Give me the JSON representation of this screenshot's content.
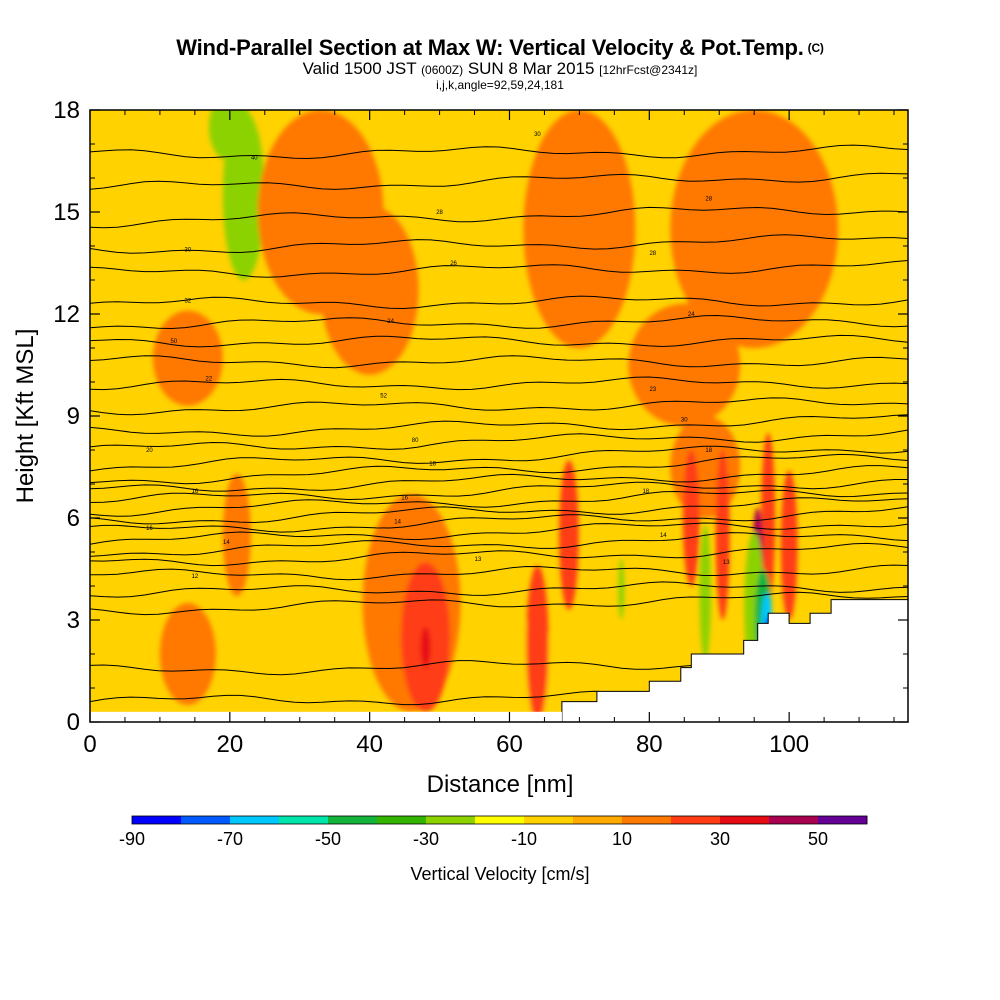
{
  "header": {
    "title": "Wind-Parallel Section at Max W: Vertical Velocity & Pot.Temp.",
    "copyright": "(C)",
    "valid_prefix": "Valid 1500 JST ",
    "valid_utc": "(0600Z)",
    "valid_date": " SUN 8 Mar 2015 ",
    "forecast": "[12hrFcst@2341z]",
    "section_params": "i,j,k,angle=92,59,24,181"
  },
  "colors": {
    "bins": [
      "#0000ff",
      "#005aff",
      "#00c8ff",
      "#00e6aa",
      "#14b43c",
      "#32b400",
      "#8cd200",
      "#ffff00",
      "#ffd200",
      "#ffaa00",
      "#ff7800",
      "#ff3c14",
      "#e60a14",
      "#aa0050",
      "#640096"
    ],
    "background_field": "#ffd200",
    "terrain": "#ffffff",
    "contour": "#000000"
  },
  "chart_data": {
    "type": "heatmap",
    "x": {
      "label": "Distance [nm]",
      "range": [
        0,
        117
      ],
      "ticks": [
        0,
        20,
        40,
        60,
        80,
        100
      ]
    },
    "y": {
      "label": "Height [Kft MSL]",
      "range": [
        0,
        18
      ],
      "ticks": [
        0,
        3,
        6,
        9,
        12,
        15,
        18
      ]
    },
    "colorbar": {
      "label": "Vertical Velocity [cm/s]",
      "bins": [
        -90,
        -80,
        -70,
        -60,
        -50,
        -40,
        -30,
        -20,
        -10,
        0,
        10,
        20,
        30,
        40,
        50,
        60
      ],
      "tick_labels": [
        "-90",
        "-70",
        "-50",
        "-30",
        "-10",
        "10",
        "30",
        "50"
      ]
    },
    "vertical_velocity_features": [
      {
        "x": 3,
        "y": 9,
        "rx": 3,
        "ry": 8,
        "w": -10
      },
      {
        "x": 7,
        "y": 14,
        "rx": 4,
        "ry": 3,
        "w": -10
      },
      {
        "x": 22,
        "y": 15.5,
        "rx": 3,
        "ry": 2.5,
        "w": -30
      },
      {
        "x": 20,
        "y": 17.5,
        "rx": 3,
        "ry": 1,
        "w": -30
      },
      {
        "x": 7,
        "y": 17.5,
        "rx": 3,
        "ry": 1,
        "w": -10
      },
      {
        "x": 40,
        "y": 11.8,
        "rx": 5,
        "ry": 1.8,
        "w": -10
      },
      {
        "x": 54,
        "y": 9.3,
        "rx": 4,
        "ry": 0.6,
        "w": -10
      },
      {
        "x": 63,
        "y": 1.5,
        "rx": 4,
        "ry": 1.5,
        "w": -10
      },
      {
        "x": 78,
        "y": 3.0,
        "rx": 6,
        "ry": 1.8,
        "w": -10
      },
      {
        "x": 40,
        "y": 12.7,
        "rx": 7,
        "ry": 2.5,
        "w": 10
      },
      {
        "x": 46,
        "y": 3.5,
        "rx": 7,
        "ry": 3.2,
        "w": 10
      },
      {
        "x": 33,
        "y": 15,
        "rx": 9,
        "ry": 3,
        "w": 10
      },
      {
        "x": 70,
        "y": 14.5,
        "rx": 8,
        "ry": 3.5,
        "w": 10
      },
      {
        "x": 95,
        "y": 14.5,
        "rx": 12,
        "ry": 3.5,
        "w": 10
      },
      {
        "x": 85,
        "y": 10.5,
        "rx": 8,
        "ry": 1.8,
        "w": 10
      },
      {
        "x": 14,
        "y": 10.7,
        "rx": 5,
        "ry": 1.4,
        "w": 10
      },
      {
        "x": 14,
        "y": 2.0,
        "rx": 4,
        "ry": 1.5,
        "w": 10
      },
      {
        "x": 21,
        "y": 5.5,
        "rx": 2,
        "ry": 1.8,
        "w": 10
      },
      {
        "x": 88,
        "y": 7.5,
        "rx": 5,
        "ry": 1.5,
        "w": 10
      },
      {
        "x": 48,
        "y": 2.5,
        "rx": 3.5,
        "ry": 2.2,
        "w": 20
      },
      {
        "x": 48,
        "y": 2.2,
        "rx": 0.7,
        "ry": 0.6,
        "w": 30
      },
      {
        "x": 64,
        "y": 2.3,
        "rx": 1.6,
        "ry": 2.3,
        "w": 20
      },
      {
        "x": 68.5,
        "y": 5.5,
        "rx": 1.4,
        "ry": 2.2,
        "w": 20
      },
      {
        "x": 86,
        "y": 6.0,
        "rx": 1.2,
        "ry": 2.0,
        "w": 20
      },
      {
        "x": 90.5,
        "y": 5.5,
        "rx": 1.0,
        "ry": 2.5,
        "w": 20
      },
      {
        "x": 97,
        "y": 6.0,
        "rx": 1.0,
        "ry": 2.5,
        "w": 20
      },
      {
        "x": 100,
        "y": 5.2,
        "rx": 1.2,
        "ry": 2.2,
        "w": 20
      },
      {
        "x": 95.5,
        "y": 4.8,
        "rx": 0.8,
        "ry": 1.5,
        "w": 40
      },
      {
        "x": 88,
        "y": 3.8,
        "rx": 0.8,
        "ry": 2.0,
        "w": -30
      },
      {
        "x": 95,
        "y": 3.4,
        "rx": 1.4,
        "ry": 2.2,
        "w": -30
      },
      {
        "x": 76,
        "y": 3.9,
        "rx": 0.5,
        "ry": 0.9,
        "w": -30
      },
      {
        "x": 96.3,
        "y": 3.1,
        "rx": 1.2,
        "ry": 1.4,
        "w": -50
      },
      {
        "x": 96.8,
        "y": 2.8,
        "rx": 0.8,
        "ry": 1.0,
        "w": -70
      },
      {
        "x": 97,
        "y": 2.4,
        "rx": 0.5,
        "ry": 0.7,
        "w": -90
      }
    ],
    "terrain_profile": [
      [
        67.5,
        0
      ],
      [
        67.5,
        0.6
      ],
      [
        72.5,
        0.6
      ],
      [
        72.5,
        0.9
      ],
      [
        80,
        0.9
      ],
      [
        80,
        1.2
      ],
      [
        84.5,
        1.2
      ],
      [
        84.5,
        1.6
      ],
      [
        86,
        1.6
      ],
      [
        86,
        2.0
      ],
      [
        93.5,
        2.0
      ],
      [
        93.5,
        2.4
      ],
      [
        95.5,
        2.4
      ],
      [
        95.5,
        2.9
      ],
      [
        97,
        2.9
      ],
      [
        97,
        3.2
      ],
      [
        100,
        3.2
      ],
      [
        100,
        2.9
      ],
      [
        103,
        2.9
      ],
      [
        103,
        3.2
      ],
      [
        106,
        3.2
      ],
      [
        106,
        3.6
      ],
      [
        117,
        3.6
      ],
      [
        117,
        0
      ]
    ],
    "potential_temperature_contours": [
      {
        "level": 290,
        "y0": 0.6,
        "y1": 0.8
      },
      {
        "level": 291,
        "y0": 1.5,
        "y1": 1.8
      },
      {
        "level": 292,
        "y0": 3.3,
        "y1": 3.7
      },
      {
        "level": 293,
        "y0": 3.8,
        "y1": 4.0
      },
      {
        "level": 294,
        "y0": 4.3,
        "y1": 4.5
      },
      {
        "level": 295,
        "y0": 4.7,
        "y1": 5.1
      },
      {
        "level": 296,
        "y0": 5.0,
        "y1": 5.5
      },
      {
        "level": 297,
        "y0": 5.3,
        "y1": 5.9
      },
      {
        "level": 298,
        "y0": 5.6,
        "y1": 6.2
      },
      {
        "level": 299,
        "y0": 5.9,
        "y1": 6.5
      },
      {
        "level": 300,
        "y0": 6.2,
        "y1": 6.8
      },
      {
        "level": 301,
        "y0": 6.5,
        "y1": 7.1
      },
      {
        "level": 302,
        "y0": 6.8,
        "y1": 7.4
      },
      {
        "level": 303,
        "y0": 7.1,
        "y1": 7.8
      },
      {
        "level": 304,
        "y0": 7.5,
        "y1": 8.1
      },
      {
        "level": 305,
        "y0": 8.0,
        "y1": 8.5
      },
      {
        "level": 306,
        "y0": 8.5,
        "y1": 8.9
      },
      {
        "level": 307,
        "y0": 9.2,
        "y1": 9.4
      },
      {
        "level": 308,
        "y0": 9.9,
        "y1": 10.0
      },
      {
        "level": 309,
        "y0": 10.6,
        "y1": 10.6
      },
      {
        "level": 310,
        "y0": 11.2,
        "y1": 11.2
      },
      {
        "level": 311,
        "y0": 11.7,
        "y1": 11.8
      },
      {
        "level": 312,
        "y0": 12.3,
        "y1": 12.4
      },
      {
        "level": 313,
        "y0": 13.2,
        "y1": 13.4
      },
      {
        "level": 314,
        "y0": 13.9,
        "y1": 14.2
      },
      {
        "level": 315,
        "y0": 14.7,
        "y1": 15.1
      },
      {
        "level": 316,
        "y0": 15.7,
        "y1": 16.1
      },
      {
        "level": 317,
        "y0": 16.7,
        "y1": 16.8
      }
    ],
    "contour_labels": [
      {
        "text": "12",
        "x": 15,
        "y": 4.3
      },
      {
        "text": "14",
        "x": 19.5,
        "y": 5.3
      },
      {
        "text": "16",
        "x": 8.5,
        "y": 5.7
      },
      {
        "text": "16",
        "x": 15,
        "y": 6.8
      },
      {
        "text": "20",
        "x": 8.5,
        "y": 8.0
      },
      {
        "text": "22",
        "x": 17,
        "y": 10.1
      },
      {
        "text": "50",
        "x": 12,
        "y": 11.2
      },
      {
        "text": "32",
        "x": 14,
        "y": 12.4
      },
      {
        "text": "30",
        "x": 14,
        "y": 13.9
      },
      {
        "text": "40",
        "x": 23.5,
        "y": 16.6
      },
      {
        "text": "13",
        "x": 55.5,
        "y": 4.8
      },
      {
        "text": "14",
        "x": 44,
        "y": 5.9
      },
      {
        "text": "16",
        "x": 45,
        "y": 6.6
      },
      {
        "text": "18",
        "x": 49,
        "y": 7.6
      },
      {
        "text": "80",
        "x": 46.5,
        "y": 8.3
      },
      {
        "text": "52",
        "x": 42,
        "y": 9.6
      },
      {
        "text": "24",
        "x": 43,
        "y": 11.8
      },
      {
        "text": "26",
        "x": 52,
        "y": 13.5
      },
      {
        "text": "28",
        "x": 50,
        "y": 15.0
      },
      {
        "text": "30",
        "x": 64,
        "y": 17.3
      },
      {
        "text": "13",
        "x": 91,
        "y": 4.7
      },
      {
        "text": "14",
        "x": 82,
        "y": 5.5
      },
      {
        "text": "18",
        "x": 79.5,
        "y": 6.8
      },
      {
        "text": "18",
        "x": 88.5,
        "y": 8.0
      },
      {
        "text": "30",
        "x": 85,
        "y": 8.9
      },
      {
        "text": "23",
        "x": 80.5,
        "y": 9.8
      },
      {
        "text": "24",
        "x": 86,
        "y": 12.0
      },
      {
        "text": "28",
        "x": 80.5,
        "y": 13.8
      },
      {
        "text": "28",
        "x": 88.5,
        "y": 15.4
      }
    ]
  }
}
